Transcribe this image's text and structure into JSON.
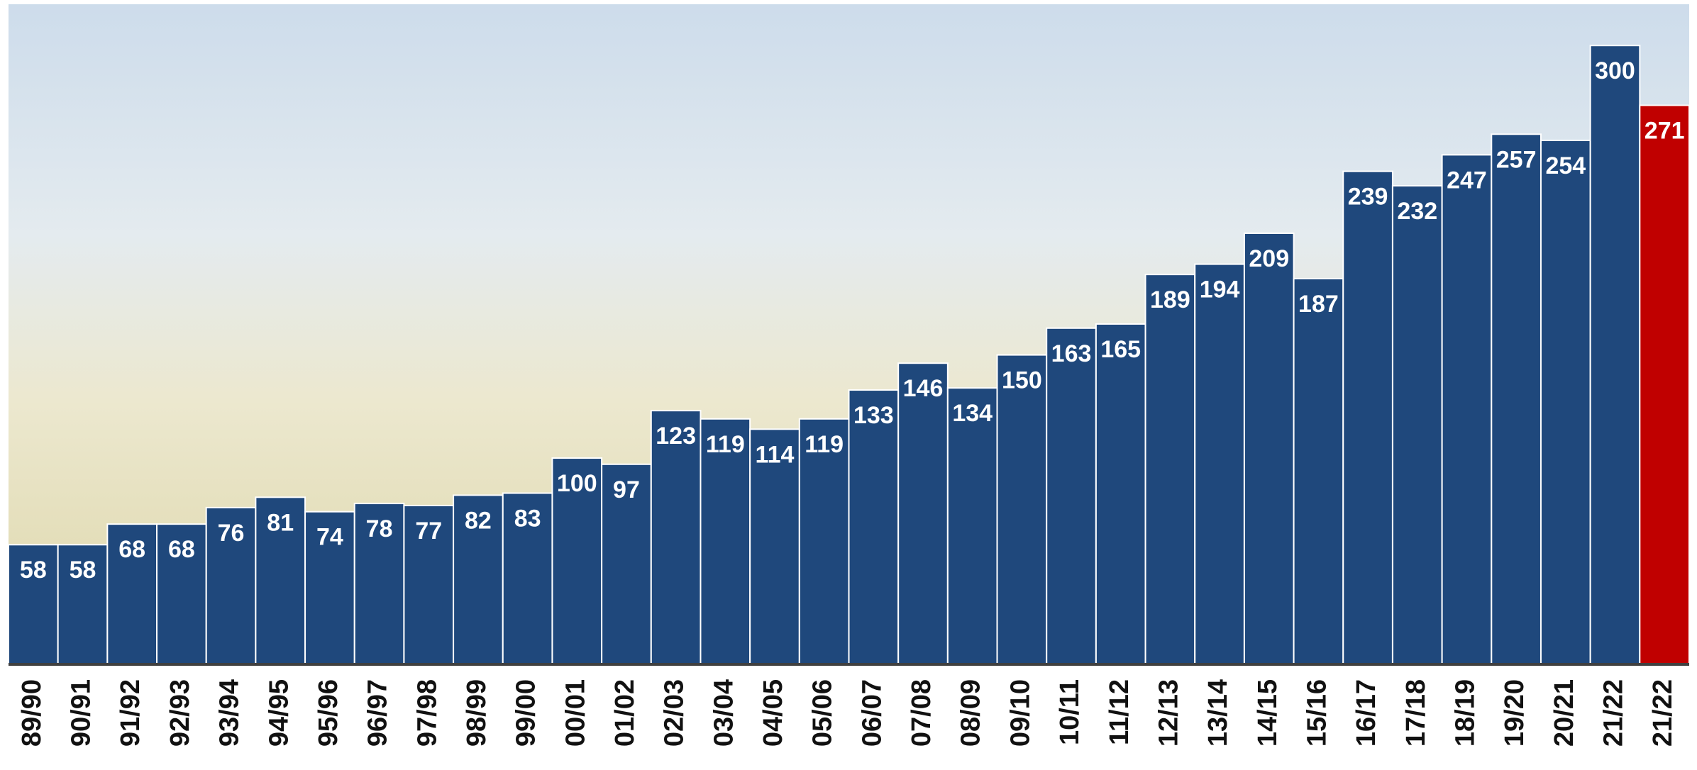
{
  "chart_data": {
    "type": "bar",
    "categories": [
      "89/90",
      "90/91",
      "91/92",
      "92/93",
      "93/94",
      "94/95",
      "95/96",
      "96/97",
      "97/98",
      "98/99",
      "99/00",
      "00/01",
      "01/02",
      "02/03",
      "03/04",
      "04/05",
      "05/06",
      "06/07",
      "07/08",
      "08/09",
      "09/10",
      "10/11",
      "11/12",
      "12/13",
      "13/14",
      "14/15",
      "15/16",
      "16/17",
      "17/18",
      "18/19",
      "19/20",
      "20/21",
      "21/22",
      "21/22"
    ],
    "values": [
      58,
      58,
      68,
      68,
      76,
      81,
      74,
      78,
      77,
      82,
      83,
      100,
      97,
      123,
      119,
      114,
      119,
      133,
      146,
      134,
      150,
      163,
      165,
      189,
      194,
      209,
      187,
      239,
      232,
      247,
      257,
      254,
      300,
      271
    ],
    "colors": [
      "#1f487c",
      "#1f487c",
      "#1f487c",
      "#1f487c",
      "#1f487c",
      "#1f487c",
      "#1f487c",
      "#1f487c",
      "#1f487c",
      "#1f487c",
      "#1f487c",
      "#1f487c",
      "#1f487c",
      "#1f487c",
      "#1f487c",
      "#1f487c",
      "#1f487c",
      "#1f487c",
      "#1f487c",
      "#1f487c",
      "#1f487c",
      "#1f487c",
      "#1f487c",
      "#1f487c",
      "#1f487c",
      "#1f487c",
      "#1f487c",
      "#1f487c",
      "#1f487c",
      "#1f487c",
      "#1f487c",
      "#1f487c",
      "#1f487c",
      "#c00000"
    ],
    "ylim": [
      0,
      320
    ]
  }
}
